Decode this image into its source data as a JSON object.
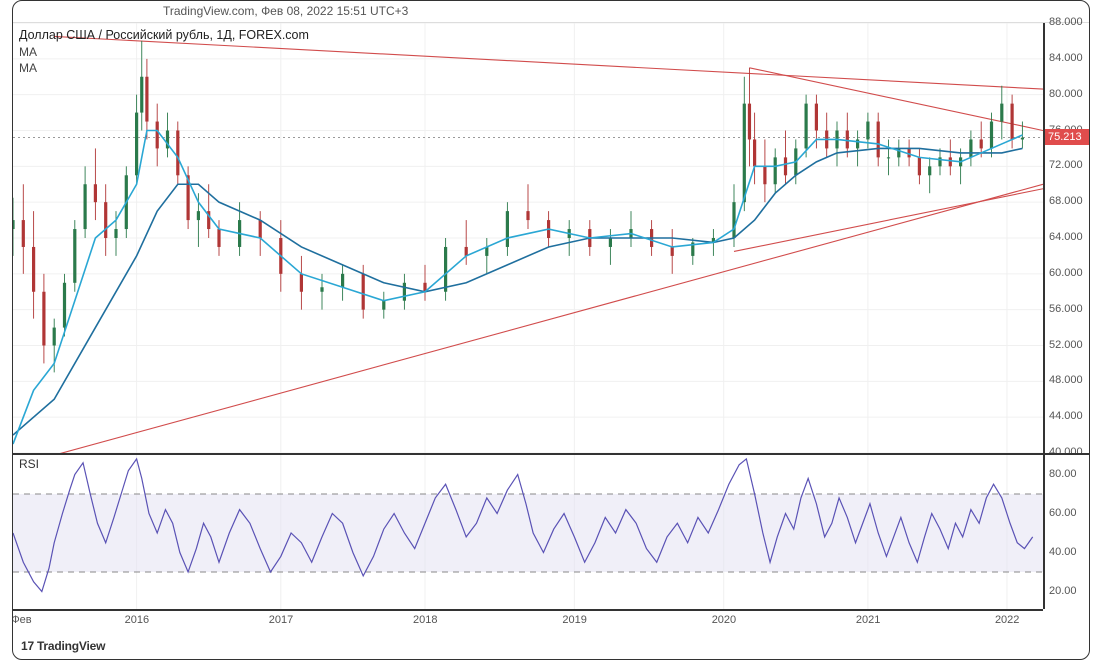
{
  "header": {
    "source": "TradingView.com",
    "timestamp": "Фев 08, 2022 15:51 UTC+3"
  },
  "instrument": {
    "title": "Доллар США / Российский рубль, 1Д, FOREX.com",
    "ma1_label": "MA",
    "ma2_label": "MA"
  },
  "rsi": {
    "label": "RSI"
  },
  "branding": {
    "text": "TradingView",
    "icon": "17"
  },
  "price_chart": {
    "type": "candlestick-like-line",
    "ylim": [
      40,
      88
    ],
    "ytick_step": 4,
    "yticks": [
      40,
      44,
      48,
      52,
      56,
      60,
      64,
      68,
      72,
      76,
      80,
      84,
      88
    ],
    "ytick_labels": [
      "40.000",
      "44.000",
      "48.000",
      "52.000",
      "56.000",
      "60.000",
      "64.000",
      "68.000",
      "72.000",
      "76.000",
      "80.000",
      "84.000",
      "88.000"
    ],
    "current_price": 75.213,
    "current_price_label": "75.213",
    "current_price_bg": "#e04c4c",
    "colors": {
      "candle_up": "#2b7a4b",
      "candle_down": "#b03636",
      "ma_fast": "#2aa7d4",
      "ma_slow": "#1f6f9e",
      "trendline": "#d14c4c",
      "grid": "#f0f0f0",
      "axis": "#333333",
      "dotted_hline": "#9a9a9a"
    },
    "price_series": [
      {
        "t": 0.0,
        "o": 65.0,
        "h": 68.5,
        "l": 62.0,
        "c": 66.0
      },
      {
        "t": 0.01,
        "o": 66.0,
        "h": 70.0,
        "l": 60.0,
        "c": 63.0
      },
      {
        "t": 0.02,
        "o": 63.0,
        "h": 67.0,
        "l": 55.0,
        "c": 58.0
      },
      {
        "t": 0.03,
        "o": 58.0,
        "h": 60.0,
        "l": 50.0,
        "c": 52.0
      },
      {
        "t": 0.04,
        "o": 52.0,
        "h": 55.0,
        "l": 49.0,
        "c": 54.0
      },
      {
        "t": 0.05,
        "o": 54.0,
        "h": 60.0,
        "l": 53.0,
        "c": 59.0
      },
      {
        "t": 0.06,
        "o": 59.0,
        "h": 66.0,
        "l": 58.0,
        "c": 65.0
      },
      {
        "t": 0.07,
        "o": 65.0,
        "h": 72.0,
        "l": 64.0,
        "c": 70.0
      },
      {
        "t": 0.08,
        "o": 70.0,
        "h": 74.0,
        "l": 66.0,
        "c": 68.0
      },
      {
        "t": 0.09,
        "o": 68.0,
        "h": 70.0,
        "l": 62.0,
        "c": 64.0
      },
      {
        "t": 0.1,
        "o": 64.0,
        "h": 67.0,
        "l": 62.0,
        "c": 65.0
      },
      {
        "t": 0.11,
        "o": 65.0,
        "h": 72.0,
        "l": 64.0,
        "c": 71.0
      },
      {
        "t": 0.12,
        "o": 71.0,
        "h": 80.0,
        "l": 70.0,
        "c": 78.0
      },
      {
        "t": 0.125,
        "o": 78.0,
        "h": 86.0,
        "l": 76.0,
        "c": 82.0
      },
      {
        "t": 0.13,
        "o": 82.0,
        "h": 84.0,
        "l": 75.0,
        "c": 77.0
      },
      {
        "t": 0.14,
        "o": 77.0,
        "h": 79.0,
        "l": 72.0,
        "c": 74.0
      },
      {
        "t": 0.15,
        "o": 74.0,
        "h": 78.0,
        "l": 73.0,
        "c": 76.0
      },
      {
        "t": 0.16,
        "o": 76.0,
        "h": 77.0,
        "l": 70.0,
        "c": 71.0
      },
      {
        "t": 0.17,
        "o": 71.0,
        "h": 72.0,
        "l": 65.0,
        "c": 66.0
      },
      {
        "t": 0.18,
        "o": 66.0,
        "h": 69.0,
        "l": 63.0,
        "c": 67.0
      },
      {
        "t": 0.19,
        "o": 67.0,
        "h": 70.0,
        "l": 64.0,
        "c": 65.0
      },
      {
        "t": 0.2,
        "o": 65.0,
        "h": 66.0,
        "l": 62.0,
        "c": 63.0
      },
      {
        "t": 0.22,
        "o": 63.0,
        "h": 68.0,
        "l": 62.0,
        "c": 66.0
      },
      {
        "t": 0.24,
        "o": 66.0,
        "h": 67.0,
        "l": 62.0,
        "c": 64.0
      },
      {
        "t": 0.26,
        "o": 64.0,
        "h": 66.0,
        "l": 58.0,
        "c": 60.0
      },
      {
        "t": 0.28,
        "o": 60.0,
        "h": 62.0,
        "l": 56.0,
        "c": 58.0
      },
      {
        "t": 0.3,
        "o": 58.0,
        "h": 60.0,
        "l": 56.0,
        "c": 58.5
      },
      {
        "t": 0.32,
        "o": 58.5,
        "h": 61.0,
        "l": 57.0,
        "c": 60.0
      },
      {
        "t": 0.34,
        "o": 60.0,
        "h": 61.0,
        "l": 55.0,
        "c": 56.0
      },
      {
        "t": 0.36,
        "o": 56.0,
        "h": 58.0,
        "l": 55.0,
        "c": 57.0
      },
      {
        "t": 0.38,
        "o": 57.0,
        "h": 60.0,
        "l": 56.0,
        "c": 59.0
      },
      {
        "t": 0.4,
        "o": 59.0,
        "h": 61.0,
        "l": 57.0,
        "c": 58.0
      },
      {
        "t": 0.42,
        "o": 58.0,
        "h": 64.0,
        "l": 57.0,
        "c": 63.0
      },
      {
        "t": 0.44,
        "o": 63.0,
        "h": 66.0,
        "l": 61.0,
        "c": 62.0
      },
      {
        "t": 0.46,
        "o": 62.0,
        "h": 64.0,
        "l": 60.0,
        "c": 63.0
      },
      {
        "t": 0.48,
        "o": 63.0,
        "h": 68.0,
        "l": 62.0,
        "c": 67.0
      },
      {
        "t": 0.5,
        "o": 67.0,
        "h": 70.0,
        "l": 65.0,
        "c": 66.0
      },
      {
        "t": 0.52,
        "o": 66.0,
        "h": 67.0,
        "l": 63.0,
        "c": 64.0
      },
      {
        "t": 0.54,
        "o": 64.0,
        "h": 66.0,
        "l": 62.0,
        "c": 65.0
      },
      {
        "t": 0.56,
        "o": 65.0,
        "h": 66.0,
        "l": 62.0,
        "c": 63.0
      },
      {
        "t": 0.58,
        "o": 63.0,
        "h": 65.0,
        "l": 61.0,
        "c": 64.0
      },
      {
        "t": 0.6,
        "o": 64.0,
        "h": 67.0,
        "l": 63.0,
        "c": 65.0
      },
      {
        "t": 0.62,
        "o": 65.0,
        "h": 66.0,
        "l": 62.0,
        "c": 63.0
      },
      {
        "t": 0.64,
        "o": 63.0,
        "h": 65.0,
        "l": 60.0,
        "c": 62.0
      },
      {
        "t": 0.66,
        "o": 62.0,
        "h": 64.0,
        "l": 61.0,
        "c": 63.5
      },
      {
        "t": 0.68,
        "o": 63.5,
        "h": 65.0,
        "l": 62.0,
        "c": 64.0
      },
      {
        "t": 0.7,
        "o": 64.0,
        "h": 70.0,
        "l": 63.0,
        "c": 68.0
      },
      {
        "t": 0.71,
        "o": 68.0,
        "h": 82.0,
        "l": 67.0,
        "c": 79.0
      },
      {
        "t": 0.715,
        "o": 79.0,
        "h": 83.0,
        "l": 72.0,
        "c": 75.0
      },
      {
        "t": 0.72,
        "o": 75.0,
        "h": 78.0,
        "l": 70.0,
        "c": 72.0
      },
      {
        "t": 0.73,
        "o": 72.0,
        "h": 75.0,
        "l": 68.0,
        "c": 70.0
      },
      {
        "t": 0.74,
        "o": 70.0,
        "h": 74.0,
        "l": 69.0,
        "c": 73.0
      },
      {
        "t": 0.75,
        "o": 73.0,
        "h": 76.0,
        "l": 70.0,
        "c": 71.0
      },
      {
        "t": 0.76,
        "o": 71.0,
        "h": 75.0,
        "l": 70.0,
        "c": 74.0
      },
      {
        "t": 0.77,
        "o": 74.0,
        "h": 80.0,
        "l": 73.0,
        "c": 79.0
      },
      {
        "t": 0.78,
        "o": 79.0,
        "h": 80.0,
        "l": 74.0,
        "c": 76.0
      },
      {
        "t": 0.79,
        "o": 76.0,
        "h": 78.0,
        "l": 73.0,
        "c": 74.0
      },
      {
        "t": 0.8,
        "o": 74.0,
        "h": 77.0,
        "l": 72.0,
        "c": 76.0
      },
      {
        "t": 0.81,
        "o": 76.0,
        "h": 78.0,
        "l": 73.0,
        "c": 74.0
      },
      {
        "t": 0.82,
        "o": 74.0,
        "h": 76.0,
        "l": 72.0,
        "c": 75.0
      },
      {
        "t": 0.83,
        "o": 75.0,
        "h": 78.0,
        "l": 74.0,
        "c": 77.0
      },
      {
        "t": 0.84,
        "o": 77.0,
        "h": 78.0,
        "l": 72.0,
        "c": 73.0
      },
      {
        "t": 0.85,
        "o": 73.0,
        "h": 75.0,
        "l": 71.0,
        "c": 73.0
      },
      {
        "t": 0.86,
        "o": 73.0,
        "h": 75.0,
        "l": 72.0,
        "c": 74.0
      },
      {
        "t": 0.87,
        "o": 74.0,
        "h": 75.0,
        "l": 72.0,
        "c": 73.0
      },
      {
        "t": 0.88,
        "o": 73.0,
        "h": 74.0,
        "l": 70.0,
        "c": 71.0
      },
      {
        "t": 0.89,
        "o": 71.0,
        "h": 73.0,
        "l": 69.0,
        "c": 72.0
      },
      {
        "t": 0.9,
        "o": 72.0,
        "h": 74.0,
        "l": 71.0,
        "c": 73.0
      },
      {
        "t": 0.91,
        "o": 73.0,
        "h": 75.0,
        "l": 71.0,
        "c": 72.0
      },
      {
        "t": 0.92,
        "o": 72.0,
        "h": 74.0,
        "l": 70.0,
        "c": 73.0
      },
      {
        "t": 0.93,
        "o": 73.0,
        "h": 76.0,
        "l": 72.0,
        "c": 75.0
      },
      {
        "t": 0.94,
        "o": 75.0,
        "h": 77.0,
        "l": 73.0,
        "c": 74.0
      },
      {
        "t": 0.95,
        "o": 74.0,
        "h": 78.0,
        "l": 73.0,
        "c": 77.0
      },
      {
        "t": 0.96,
        "o": 77.0,
        "h": 81.0,
        "l": 75.0,
        "c": 79.0
      },
      {
        "t": 0.97,
        "o": 79.0,
        "h": 80.0,
        "l": 74.0,
        "c": 75.0
      },
      {
        "t": 0.98,
        "o": 75.0,
        "h": 77.0,
        "l": 74.0,
        "c": 75.2
      }
    ],
    "ma_fast_series": [
      [
        0.0,
        41.0
      ],
      [
        0.02,
        47.0
      ],
      [
        0.04,
        50.0
      ],
      [
        0.06,
        57.0
      ],
      [
        0.08,
        64.0
      ],
      [
        0.1,
        66.0
      ],
      [
        0.12,
        70.0
      ],
      [
        0.13,
        76.0
      ],
      [
        0.14,
        76.0
      ],
      [
        0.16,
        73.0
      ],
      [
        0.18,
        68.0
      ],
      [
        0.2,
        65.0
      ],
      [
        0.24,
        64.0
      ],
      [
        0.28,
        60.0
      ],
      [
        0.32,
        58.5
      ],
      [
        0.36,
        57.0
      ],
      [
        0.4,
        58.0
      ],
      [
        0.44,
        62.0
      ],
      [
        0.48,
        64.0
      ],
      [
        0.52,
        65.0
      ],
      [
        0.56,
        64.0
      ],
      [
        0.6,
        64.5
      ],
      [
        0.64,
        63.0
      ],
      [
        0.68,
        63.5
      ],
      [
        0.7,
        65.0
      ],
      [
        0.72,
        72.0
      ],
      [
        0.74,
        72.0
      ],
      [
        0.76,
        72.5
      ],
      [
        0.78,
        75.0
      ],
      [
        0.8,
        75.0
      ],
      [
        0.84,
        74.5
      ],
      [
        0.88,
        73.0
      ],
      [
        0.92,
        72.5
      ],
      [
        0.96,
        74.5
      ],
      [
        0.98,
        75.5
      ]
    ],
    "ma_slow_series": [
      [
        0.0,
        42.0
      ],
      [
        0.04,
        46.0
      ],
      [
        0.08,
        54.0
      ],
      [
        0.12,
        62.0
      ],
      [
        0.14,
        67.0
      ],
      [
        0.16,
        70.0
      ],
      [
        0.18,
        70.0
      ],
      [
        0.2,
        68.0
      ],
      [
        0.24,
        66.0
      ],
      [
        0.28,
        63.0
      ],
      [
        0.32,
        61.0
      ],
      [
        0.36,
        59.0
      ],
      [
        0.4,
        58.0
      ],
      [
        0.44,
        59.0
      ],
      [
        0.48,
        61.0
      ],
      [
        0.52,
        63.0
      ],
      [
        0.56,
        64.0
      ],
      [
        0.6,
        64.0
      ],
      [
        0.64,
        64.0
      ],
      [
        0.68,
        63.5
      ],
      [
        0.7,
        64.0
      ],
      [
        0.72,
        66.0
      ],
      [
        0.74,
        69.0
      ],
      [
        0.76,
        71.0
      ],
      [
        0.78,
        72.5
      ],
      [
        0.8,
        73.5
      ],
      [
        0.84,
        74.0
      ],
      [
        0.88,
        74.0
      ],
      [
        0.92,
        73.5
      ],
      [
        0.96,
        73.5
      ],
      [
        0.98,
        74.0
      ]
    ],
    "trendlines": [
      {
        "p1": [
          0.0,
          38.5
        ],
        "p2": [
          1.0,
          70.0
        ]
      },
      {
        "p1": [
          0.04,
          86.5
        ],
        "p2": [
          1.02,
          80.5
        ]
      },
      {
        "p1": [
          0.715,
          83.0
        ],
        "p2": [
          1.0,
          76.0
        ]
      },
      {
        "p1": [
          0.7,
          62.5
        ],
        "p2": [
          1.0,
          69.5
        ]
      }
    ]
  },
  "rsi_chart": {
    "type": "line",
    "ylim": [
      10,
      90
    ],
    "yticks": [
      20,
      40,
      60,
      80
    ],
    "ytick_labels": [
      "20.00",
      "40.00",
      "60.00",
      "80.00"
    ],
    "band_upper": 70,
    "band_lower": 30,
    "band_fill": "#e4e1f2",
    "band_border": "#8a8a8a",
    "line_color": "#5a52b5",
    "line_width": 1.2,
    "series": [
      [
        0.0,
        50
      ],
      [
        0.01,
        35
      ],
      [
        0.02,
        25
      ],
      [
        0.028,
        20
      ],
      [
        0.035,
        32
      ],
      [
        0.04,
        45
      ],
      [
        0.048,
        60
      ],
      [
        0.055,
        72
      ],
      [
        0.06,
        80
      ],
      [
        0.068,
        86
      ],
      [
        0.075,
        70
      ],
      [
        0.082,
        55
      ],
      [
        0.09,
        45
      ],
      [
        0.098,
        58
      ],
      [
        0.105,
        70
      ],
      [
        0.112,
        82
      ],
      [
        0.12,
        88
      ],
      [
        0.125,
        78
      ],
      [
        0.132,
        60
      ],
      [
        0.14,
        50
      ],
      [
        0.148,
        62
      ],
      [
        0.155,
        55
      ],
      [
        0.162,
        40
      ],
      [
        0.17,
        30
      ],
      [
        0.178,
        42
      ],
      [
        0.185,
        55
      ],
      [
        0.192,
        48
      ],
      [
        0.2,
        35
      ],
      [
        0.21,
        50
      ],
      [
        0.22,
        62
      ],
      [
        0.23,
        55
      ],
      [
        0.24,
        42
      ],
      [
        0.25,
        30
      ],
      [
        0.26,
        38
      ],
      [
        0.27,
        50
      ],
      [
        0.28,
        45
      ],
      [
        0.29,
        35
      ],
      [
        0.3,
        48
      ],
      [
        0.31,
        60
      ],
      [
        0.32,
        55
      ],
      [
        0.33,
        40
      ],
      [
        0.34,
        28
      ],
      [
        0.35,
        38
      ],
      [
        0.36,
        52
      ],
      [
        0.37,
        60
      ],
      [
        0.38,
        50
      ],
      [
        0.39,
        42
      ],
      [
        0.4,
        55
      ],
      [
        0.41,
        68
      ],
      [
        0.42,
        75
      ],
      [
        0.43,
        62
      ],
      [
        0.44,
        48
      ],
      [
        0.45,
        55
      ],
      [
        0.46,
        68
      ],
      [
        0.47,
        60
      ],
      [
        0.48,
        72
      ],
      [
        0.49,
        80
      ],
      [
        0.498,
        65
      ],
      [
        0.505,
        50
      ],
      [
        0.515,
        40
      ],
      [
        0.525,
        52
      ],
      [
        0.535,
        60
      ],
      [
        0.545,
        48
      ],
      [
        0.555,
        35
      ],
      [
        0.565,
        45
      ],
      [
        0.575,
        58
      ],
      [
        0.585,
        50
      ],
      [
        0.595,
        62
      ],
      [
        0.605,
        55
      ],
      [
        0.615,
        42
      ],
      [
        0.625,
        35
      ],
      [
        0.635,
        48
      ],
      [
        0.645,
        55
      ],
      [
        0.655,
        45
      ],
      [
        0.665,
        58
      ],
      [
        0.675,
        50
      ],
      [
        0.685,
        62
      ],
      [
        0.695,
        75
      ],
      [
        0.705,
        85
      ],
      [
        0.712,
        88
      ],
      [
        0.72,
        70
      ],
      [
        0.728,
        50
      ],
      [
        0.735,
        35
      ],
      [
        0.742,
        48
      ],
      [
        0.75,
        60
      ],
      [
        0.758,
        52
      ],
      [
        0.765,
        68
      ],
      [
        0.772,
        78
      ],
      [
        0.78,
        65
      ],
      [
        0.788,
        48
      ],
      [
        0.795,
        55
      ],
      [
        0.802,
        68
      ],
      [
        0.81,
        58
      ],
      [
        0.818,
        45
      ],
      [
        0.825,
        55
      ],
      [
        0.832,
        65
      ],
      [
        0.84,
        50
      ],
      [
        0.848,
        38
      ],
      [
        0.855,
        48
      ],
      [
        0.862,
        58
      ],
      [
        0.87,
        45
      ],
      [
        0.878,
        35
      ],
      [
        0.885,
        48
      ],
      [
        0.892,
        60
      ],
      [
        0.9,
        52
      ],
      [
        0.908,
        42
      ],
      [
        0.915,
        55
      ],
      [
        0.922,
        48
      ],
      [
        0.93,
        62
      ],
      [
        0.938,
        55
      ],
      [
        0.945,
        68
      ],
      [
        0.952,
        75
      ],
      [
        0.96,
        68
      ],
      [
        0.968,
        55
      ],
      [
        0.975,
        45
      ],
      [
        0.982,
        42
      ],
      [
        0.99,
        48
      ]
    ]
  },
  "time_axis": {
    "labels": [
      {
        "t": 0.01,
        "text": "Фев"
      },
      {
        "t": 0.12,
        "text": "2016"
      },
      {
        "t": 0.26,
        "text": "2017"
      },
      {
        "t": 0.4,
        "text": "2018"
      },
      {
        "t": 0.545,
        "text": "2019"
      },
      {
        "t": 0.69,
        "text": "2020"
      },
      {
        "t": 0.83,
        "text": "2021"
      },
      {
        "t": 0.965,
        "text": "2022"
      }
    ],
    "grid_ts": [
      0.12,
      0.26,
      0.4,
      0.545,
      0.69,
      0.83,
      0.965
    ]
  }
}
